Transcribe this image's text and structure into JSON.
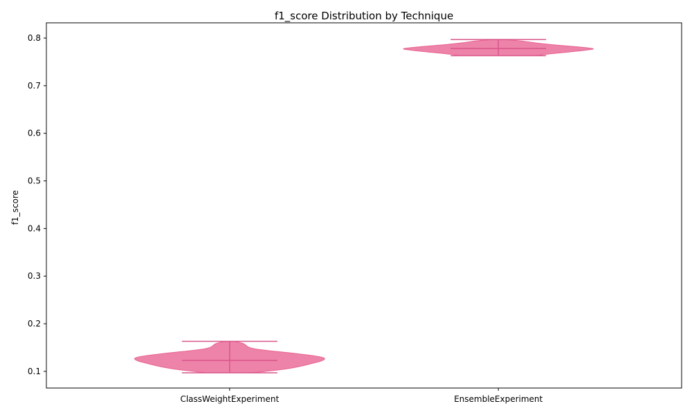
{
  "chart_data": {
    "type": "violin",
    "title": "f1_score Distribution by Technique",
    "xlabel": "",
    "ylabel": "f1_score",
    "categories": [
      "ClassWeightExperiment",
      "EnsembleExperiment"
    ],
    "ylim": [
      0.065,
      0.832
    ],
    "yticks": [
      0.1,
      0.2,
      0.3,
      0.4,
      0.5,
      0.6,
      0.7,
      0.8
    ],
    "grid": false,
    "legend": "none",
    "color": "#e8608f",
    "violins": [
      {
        "category": "ClassWeightExperiment",
        "min": 0.097,
        "median": 0.123,
        "max": 0.163,
        "density": [
          [
            0.097,
            0.24
          ],
          [
            0.102,
            0.47
          ],
          [
            0.106,
            0.62
          ],
          [
            0.11,
            0.72
          ],
          [
            0.116,
            0.85
          ],
          [
            0.122,
            0.96
          ],
          [
            0.127,
            1.0
          ],
          [
            0.131,
            0.94
          ],
          [
            0.135,
            0.8
          ],
          [
            0.139,
            0.62
          ],
          [
            0.143,
            0.42
          ],
          [
            0.147,
            0.26
          ],
          [
            0.151,
            0.19
          ],
          [
            0.155,
            0.17
          ],
          [
            0.159,
            0.14
          ],
          [
            0.163,
            0.05
          ]
        ]
      },
      {
        "category": "EnsembleExperiment",
        "min": 0.763,
        "median": 0.778,
        "max": 0.797,
        "density": [
          [
            0.763,
            0.39
          ],
          [
            0.766,
            0.5
          ],
          [
            0.769,
            0.64
          ],
          [
            0.772,
            0.8
          ],
          [
            0.775,
            0.93
          ],
          [
            0.777,
            1.0
          ],
          [
            0.779,
            0.96
          ],
          [
            0.782,
            0.8
          ],
          [
            0.785,
            0.62
          ],
          [
            0.788,
            0.46
          ],
          [
            0.791,
            0.34
          ],
          [
            0.794,
            0.24
          ],
          [
            0.797,
            0.05
          ]
        ]
      }
    ]
  }
}
